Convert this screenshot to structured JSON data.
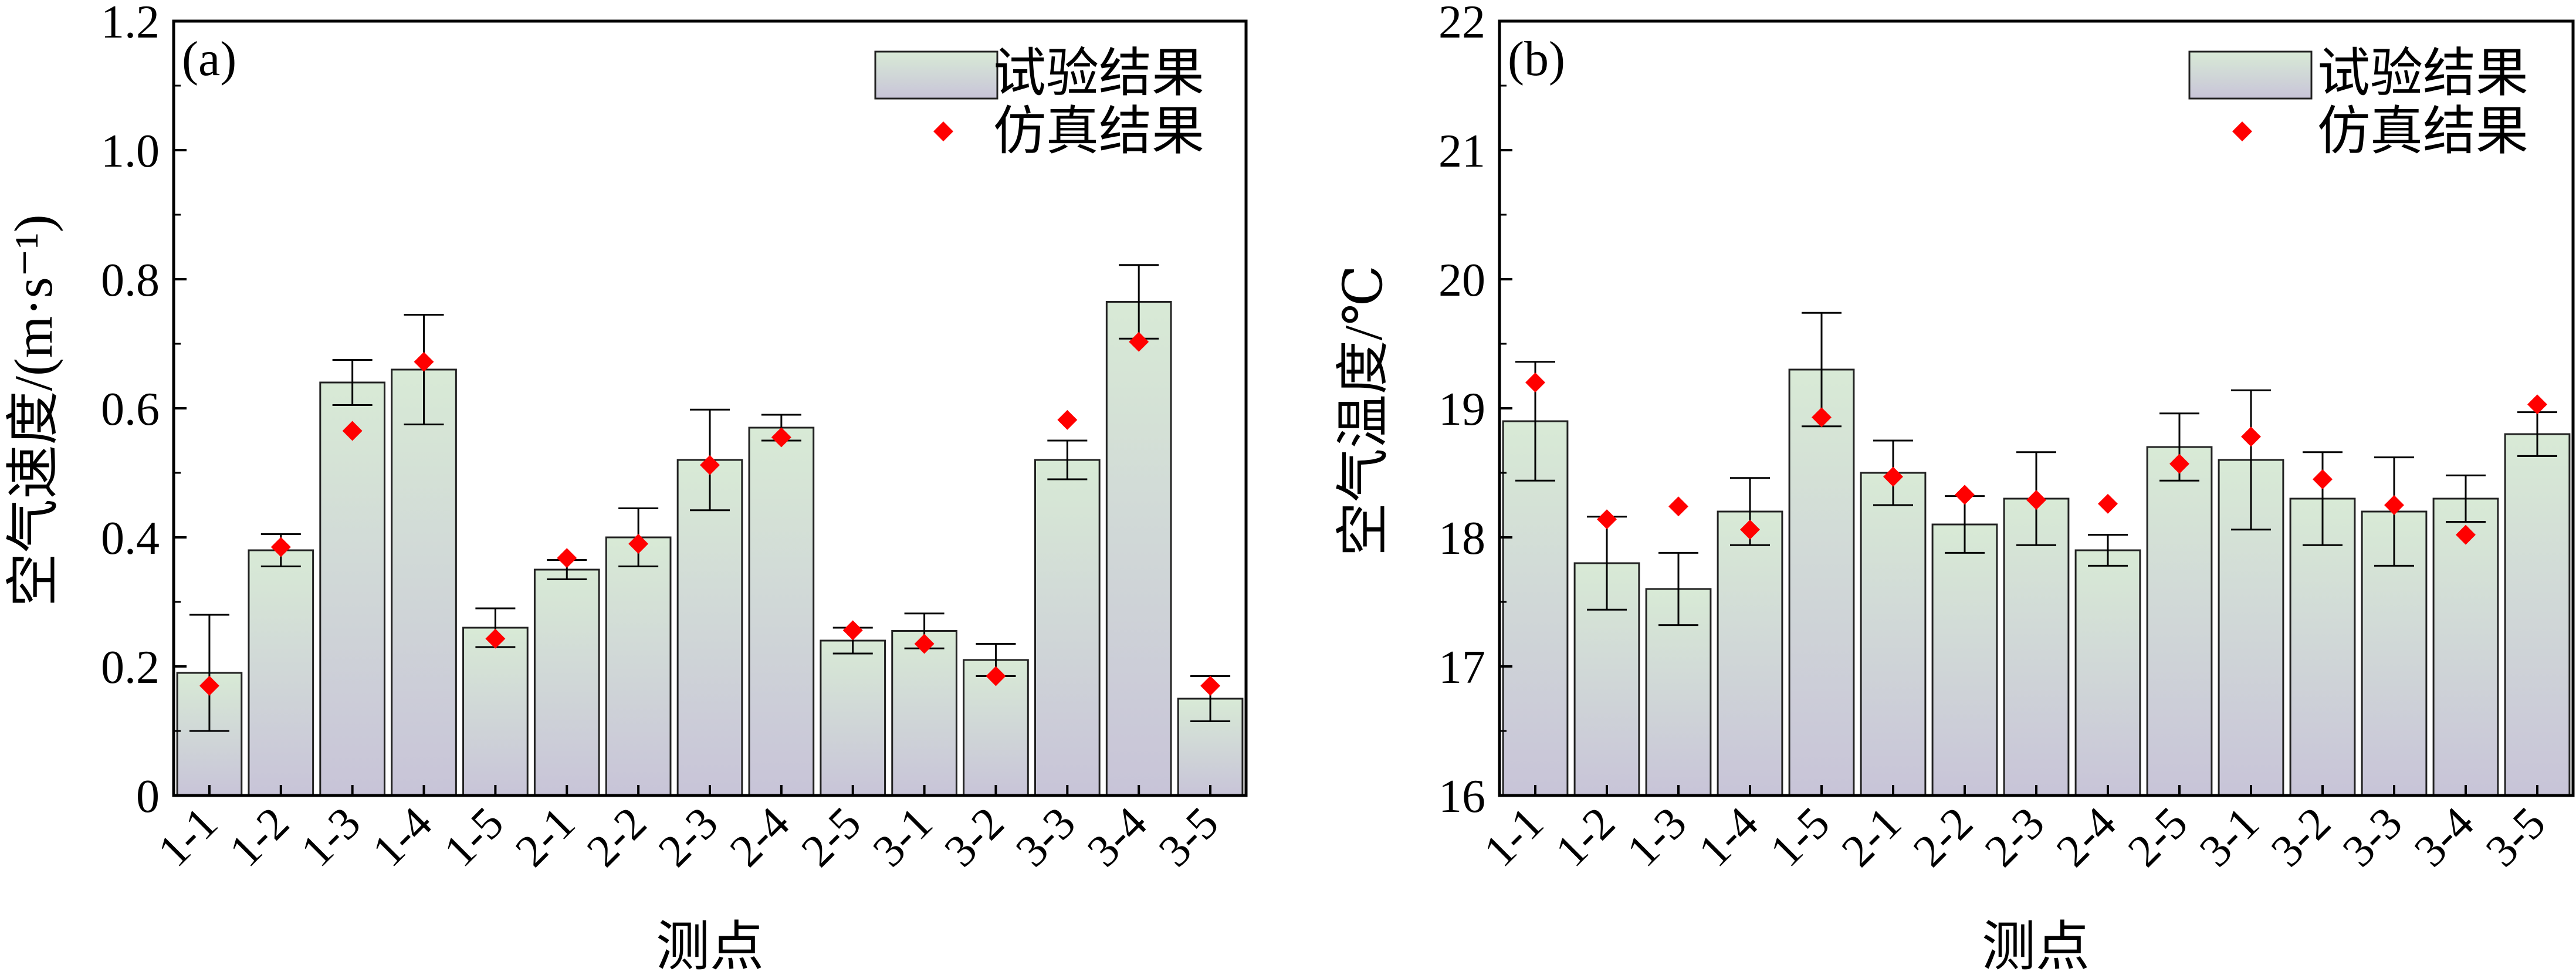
{
  "chart_data": [
    {
      "panel": "(a)",
      "type": "bar",
      "categories": [
        "1-1",
        "1-2",
        "1-3",
        "1-4",
        "1-5",
        "2-1",
        "2-2",
        "2-3",
        "2-4",
        "2-5",
        "3-1",
        "3-2",
        "3-3",
        "3-4",
        "3-5"
      ],
      "series": [
        {
          "name": "试验结果",
          "kind": "bar",
          "values": [
            0.19,
            0.38,
            0.64,
            0.66,
            0.26,
            0.35,
            0.4,
            0.52,
            0.57,
            0.24,
            0.255,
            0.21,
            0.52,
            0.765,
            0.15
          ],
          "errors": [
            0.09,
            0.025,
            0.035,
            0.085,
            0.03,
            0.015,
            0.045,
            0.078,
            0.02,
            0.02,
            0.027,
            0.025,
            0.03,
            0.057,
            0.035
          ]
        },
        {
          "name": "仿真结果",
          "kind": "scatter",
          "values": [
            0.17,
            0.385,
            0.565,
            0.672,
            0.243,
            0.368,
            0.39,
            0.512,
            0.555,
            0.256,
            0.235,
            0.185,
            0.582,
            0.703,
            0.17
          ]
        }
      ],
      "xlabel": "测点",
      "ylabel": "空气速度/(m·s⁻¹)",
      "ylim": [
        0,
        1.2
      ],
      "yticks": [
        0,
        0.2,
        0.4,
        0.6,
        0.8,
        1.0,
        1.2
      ],
      "ytick_labels": [
        "0",
        "0.2",
        "0.4",
        "0.6",
        "0.8",
        "1.0",
        "1.2"
      ],
      "legend_position": "top-right"
    },
    {
      "panel": "(b)",
      "type": "bar",
      "categories": [
        "1-1",
        "1-2",
        "1-3",
        "1-4",
        "1-5",
        "2-1",
        "2-2",
        "2-3",
        "2-4",
        "2-5",
        "3-1",
        "3-2",
        "3-3",
        "3-4",
        "3-5"
      ],
      "series": [
        {
          "name": "试验结果",
          "kind": "bar",
          "values": [
            18.9,
            17.8,
            17.6,
            18.2,
            19.3,
            18.5,
            18.1,
            18.3,
            17.9,
            18.7,
            18.6,
            18.3,
            18.2,
            18.3,
            18.8
          ],
          "errors": [
            0.46,
            0.36,
            0.28,
            0.26,
            0.44,
            0.25,
            0.22,
            0.36,
            0.12,
            0.26,
            0.54,
            0.36,
            0.42,
            0.18,
            0.17
          ]
        },
        {
          "name": "仿真结果",
          "kind": "scatter",
          "values": [
            19.2,
            18.14,
            18.24,
            18.06,
            18.93,
            18.47,
            18.33,
            18.29,
            18.26,
            18.57,
            18.78,
            18.45,
            18.25,
            18.02,
            19.03
          ]
        }
      ],
      "xlabel": "测点",
      "ylabel": "空气温度/℃",
      "ylim": [
        16,
        22
      ],
      "yticks": [
        16,
        17,
        18,
        19,
        20,
        21,
        22
      ],
      "ytick_labels": [
        "16",
        "17",
        "18",
        "19",
        "20",
        "21",
        "22"
      ],
      "legend_position": "top-right"
    }
  ],
  "colors": {
    "bar_top": "#d8ead6",
    "bar_bottom": "#c8c4d8",
    "bar_edge": "#222222",
    "marker": "#ff0000",
    "axis": "#000000"
  }
}
